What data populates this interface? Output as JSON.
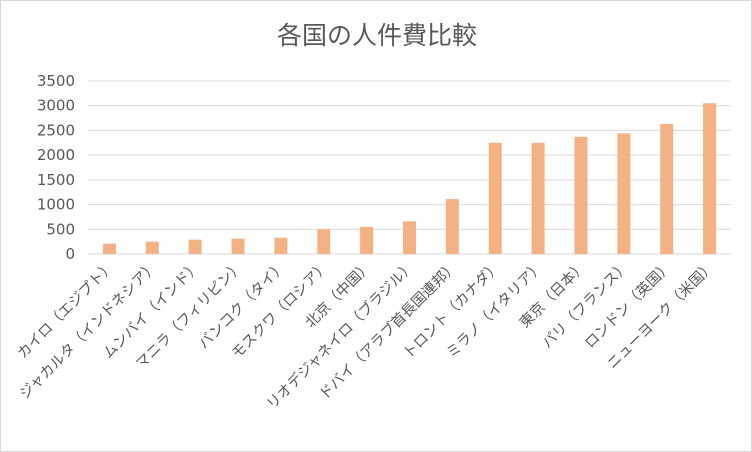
{
  "chart_data": {
    "type": "bar",
    "title": "各国の人件費比較",
    "xlabel": "",
    "ylabel": "",
    "ylim": [
      0,
      3500
    ],
    "ytick_step": 500,
    "yticks": [
      "0",
      "500",
      "1000",
      "1500",
      "2000",
      "2500",
      "3000",
      "3500"
    ],
    "grid": true,
    "legend": "none",
    "colors": {
      "bar": "#f4b183",
      "grid": "#d9d9d9",
      "text": "#595959"
    },
    "categories": [
      "カイロ（エジプト）",
      "ジャカルタ（インドネシア）",
      "ムンバイ（インド）",
      "マニラ（フィリピン）",
      "バンコク（タイ）",
      "モスクワ（ロシア）",
      "北京（中国）",
      "リオデジャネイロ（ブラジル）",
      "ドバイ（アラブ首長国連邦）",
      "トロント（カナダ）",
      "ミラノ（イタリア）",
      "東京（日本）",
      "パリ（フランス）",
      "ロンドン（英国）",
      "ニューヨーク（米国）"
    ],
    "values": [
      210,
      250,
      290,
      310,
      330,
      500,
      550,
      660,
      1110,
      2250,
      2250,
      2370,
      2440,
      2630,
      3050
    ]
  }
}
